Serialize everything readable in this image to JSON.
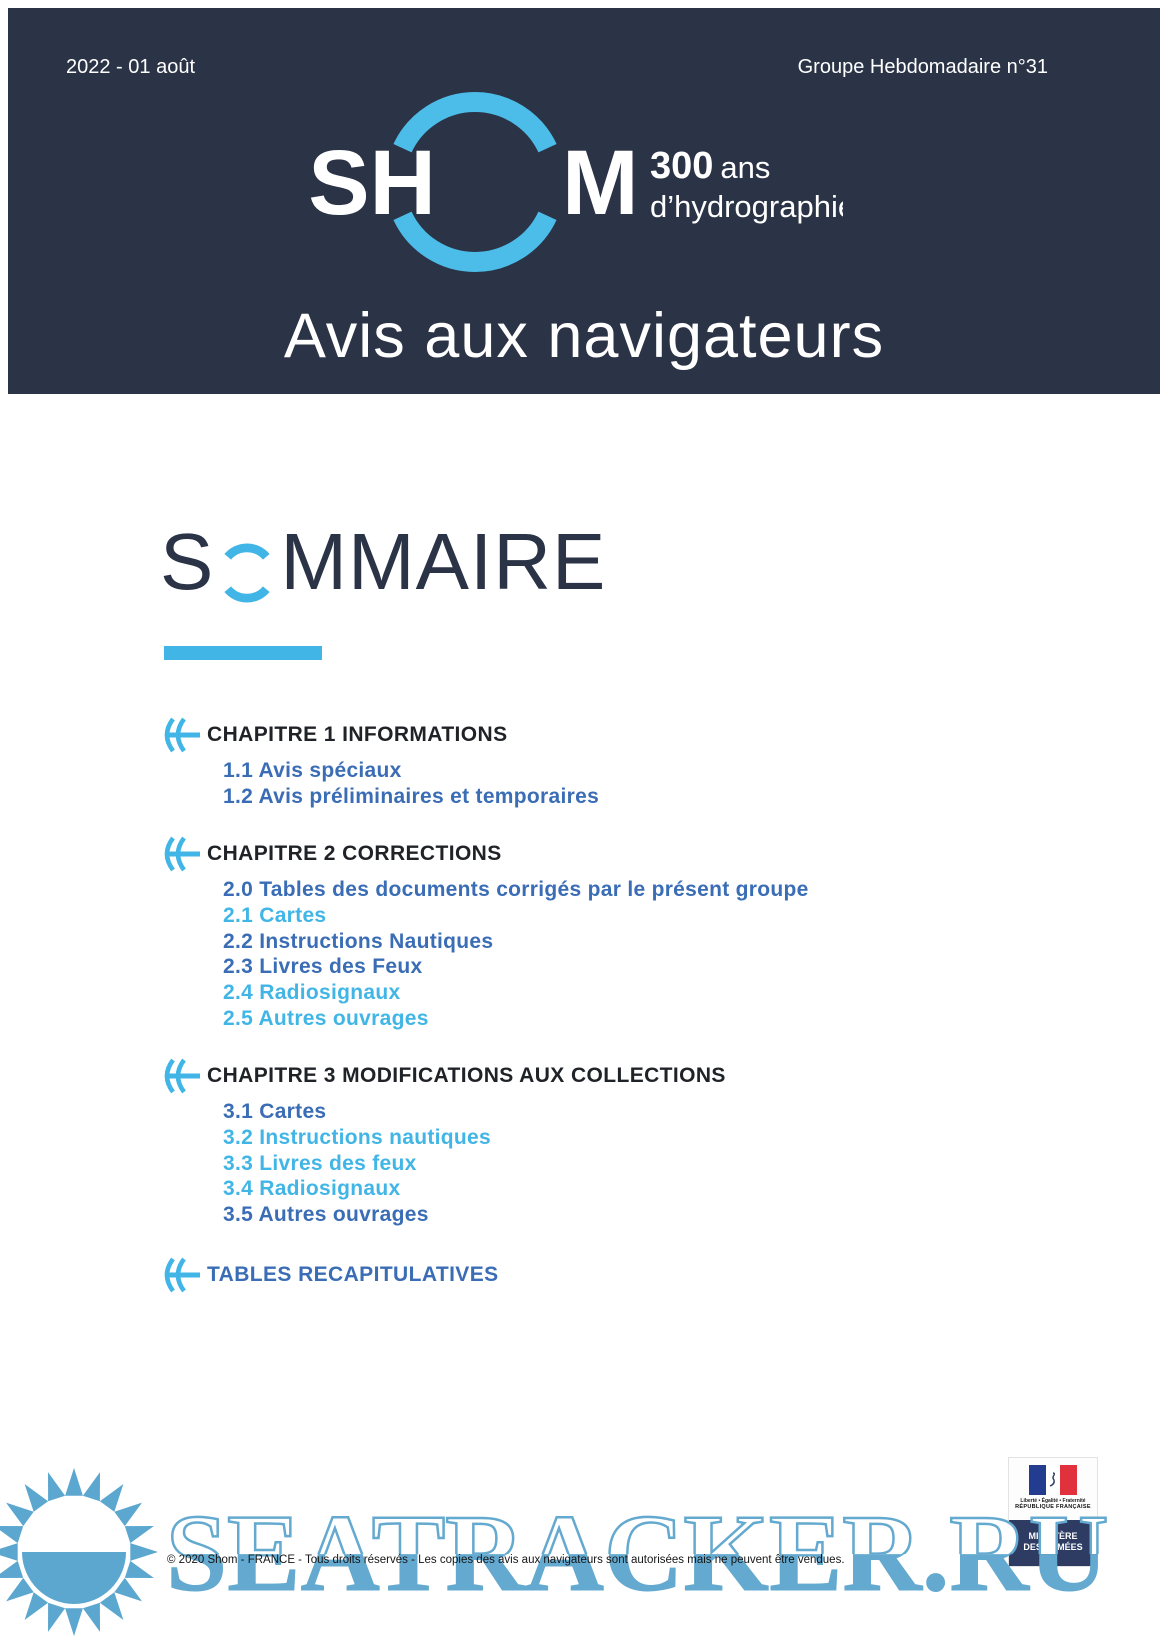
{
  "colors": {
    "navy": "#2b3346",
    "light": "#41b6e6",
    "medium": "#3a6db5",
    "dark": "#1f2227",
    "ring": "#4cbce9",
    "wm": "#64a9cf",
    "sun": "#5ba7cf",
    "govnavy": "#2e3c64",
    "flagblue": "#243c8f",
    "flagred": "#e1313c"
  },
  "header": {
    "date": "2022 - 01 août",
    "issue": "Groupe Hebdomadaire n°31",
    "logo": {
      "sh": "SH",
      "m": "M",
      "years": "300",
      "years_suffix": "ans",
      "tagline": "d’hydrographie"
    },
    "title": "Avis aux navigateurs"
  },
  "sommaire": {
    "title_start": "S",
    "title_end": "MMAIRE",
    "sections": [
      {
        "heading": "CHAPITRE 1 INFORMATIONS",
        "items": [
          {
            "label": "1.1 Avis spéciaux",
            "tone": "medium"
          },
          {
            "label": "1.2 Avis préliminaires et temporaires",
            "tone": "medium"
          }
        ]
      },
      {
        "heading": "CHAPITRE 2 CORRECTIONS",
        "items": [
          {
            "label": "2.0 Tables des documents corrigés par le présent groupe",
            "tone": "medium"
          },
          {
            "label": "2.1 Cartes",
            "tone": "light"
          },
          {
            "label": "2.2 Instructions Nautiques",
            "tone": "medium"
          },
          {
            "label": "2.3 Livres des Feux",
            "tone": "medium"
          },
          {
            "label": "2.4 Radiosignaux",
            "tone": "light"
          },
          {
            "label": "2.5 Autres ouvrages",
            "tone": "light"
          }
        ]
      },
      {
        "heading": "CHAPITRE 3 MODIFICATIONS AUX COLLECTIONS",
        "items": [
          {
            "label": "3.1 Cartes",
            "tone": "medium"
          },
          {
            "label": "3.2 Instructions nautiques",
            "tone": "light"
          },
          {
            "label": "3.3 Livres des feux",
            "tone": "light"
          },
          {
            "label": "3.4 Radiosignaux",
            "tone": "light"
          },
          {
            "label": "3.5 Autres ouvrages",
            "tone": "medium"
          }
        ]
      }
    ],
    "tables_link": "TABLES RECAPITULATIVES"
  },
  "footer": {
    "copyright": "© 2020 Shom - FRANCE - Tous droits réservés - Les copies des avis aux navigateurs sont autorisées mais ne peuvent être vendues.",
    "watermark": "SEATRACKER.RU",
    "gov_logo": {
      "motto": "Liberté • Égalité • Fraternité",
      "republic": "RÉPUBLIQUE FRANÇAISE",
      "ministry": "MINISTÈRE DES ARMÉES"
    }
  }
}
